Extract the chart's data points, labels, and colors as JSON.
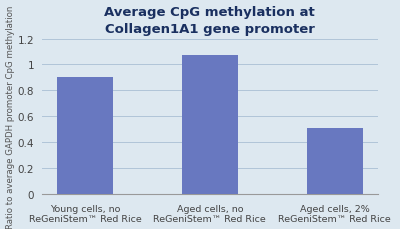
{
  "title_line1": "Average CpG methylation at",
  "title_line2": "Collagen1A1 gene promoter",
  "categories": [
    "Young cells, no\nReGeniStem™ Red Rice",
    "Aged cells, no\nReGeniStem™ Red Rice",
    "Aged cells, 2%\nReGeniStem™ Red Rice"
  ],
  "values": [
    0.9,
    1.07,
    0.51
  ],
  "bar_color": "#6878c0",
  "ylabel": "Ratio to average GAPDH promoter CpG methylation",
  "ylim": [
    0,
    1.2
  ],
  "ytick_labels": [
    "0",
    "0.2",
    "0.4",
    "0.6",
    "0.8",
    "1",
    "1.2"
  ],
  "ytick_values": [
    0,
    0.2,
    0.4,
    0.6,
    0.8,
    1.0,
    1.2
  ],
  "background_color": "#dde8f0",
  "title_color": "#1a3060",
  "axis_label_color": "#555555",
  "tick_label_color": "#444444",
  "grid_color": "#b0c4d8",
  "spine_color": "#999999",
  "title_fontsize": 9.5,
  "ylabel_fontsize": 6.2,
  "xtick_fontsize": 6.8,
  "ytick_fontsize": 7.5,
  "bar_width": 0.45
}
